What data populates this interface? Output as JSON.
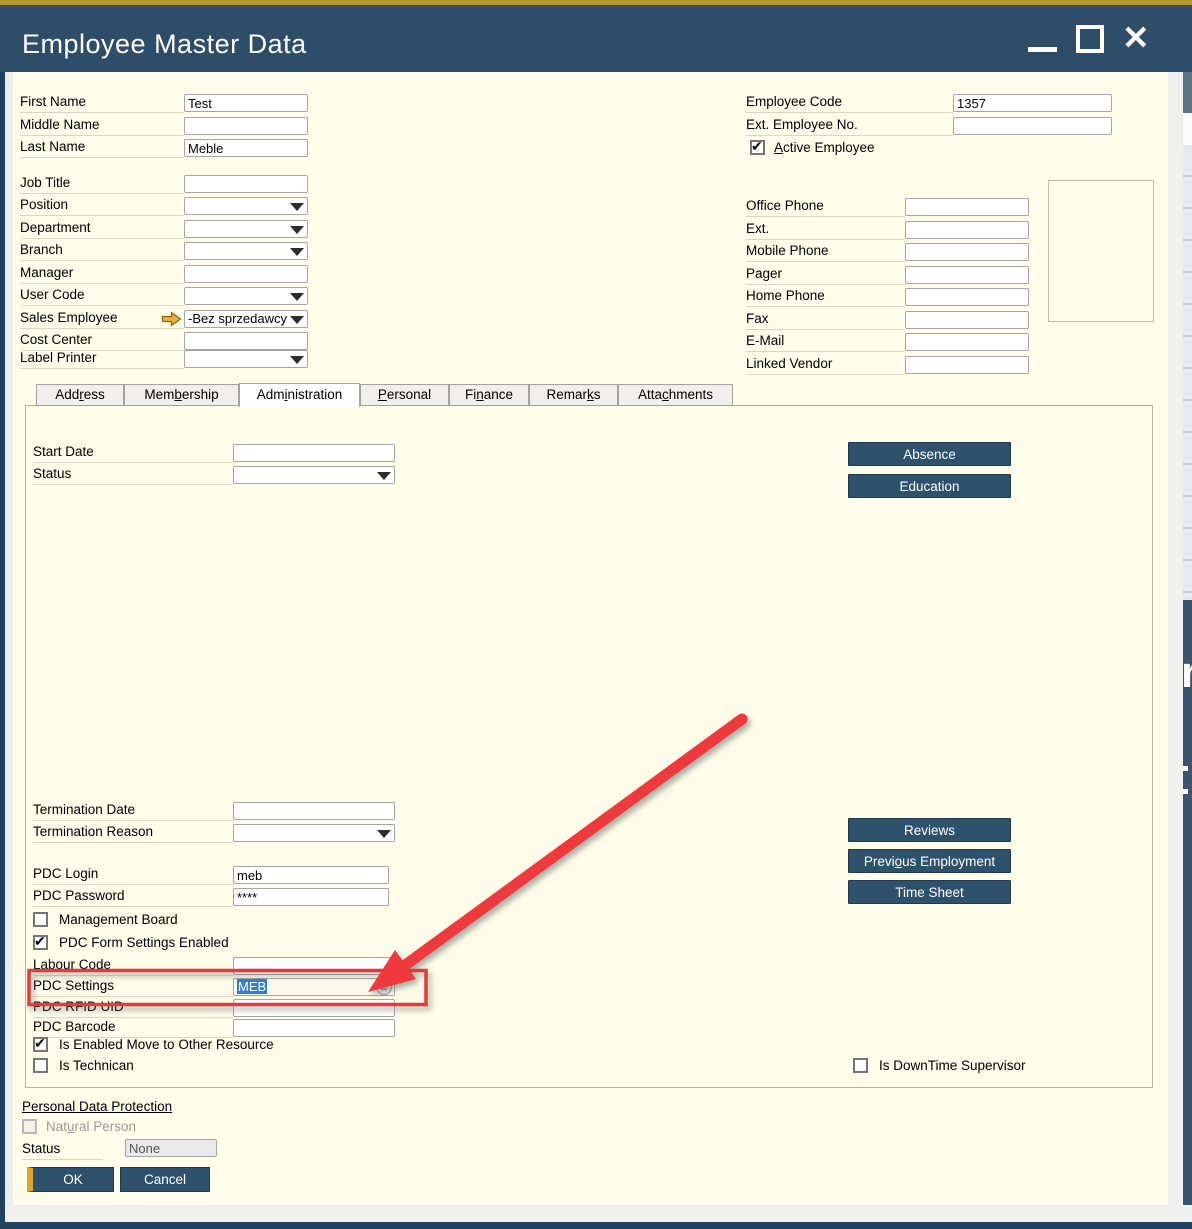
{
  "window": {
    "title": "Employee Master Data",
    "icons": {
      "close": "✕",
      "cfl": "≡"
    }
  },
  "general_left": {
    "rows": [
      {
        "label": "First Name",
        "value": "Test",
        "type": "text"
      },
      {
        "label": "Middle Name",
        "value": "",
        "type": "text"
      },
      {
        "label": "Last Name",
        "value": "Meble",
        "type": "text"
      },
      {
        "label": "Job Title",
        "value": "",
        "type": "text"
      },
      {
        "label": "Position",
        "value": "",
        "type": "combo"
      },
      {
        "label": "Department",
        "value": "",
        "type": "combo"
      },
      {
        "label": "Branch",
        "value": "",
        "type": "combo"
      },
      {
        "label": "Manager",
        "value": "",
        "type": "text"
      },
      {
        "label": "User Code",
        "value": "",
        "type": "combo"
      },
      {
        "label": "Sales Employee",
        "value": "-Bez sprzedawcy",
        "type": "combo",
        "link_arrow": true
      },
      {
        "label": "Cost Center",
        "value": "",
        "type": "text"
      },
      {
        "label": "Label Printer",
        "value": "",
        "type": "combo"
      }
    ]
  },
  "general_right": {
    "employee_code": {
      "label": "Employee Code",
      "value": "1357"
    },
    "ext_employee_no": {
      "label": "Ext. Employee No.",
      "value": ""
    },
    "active_employee": {
      "label": "Active Employee",
      "checked": true
    },
    "contact_rows": [
      {
        "label": "Office Phone",
        "value": ""
      },
      {
        "label": "Ext.",
        "value": ""
      },
      {
        "label": "Mobile Phone",
        "value": ""
      },
      {
        "label": "Pager",
        "value": ""
      },
      {
        "label": "Home Phone",
        "value": ""
      },
      {
        "label": "Fax",
        "value": ""
      },
      {
        "label": "E-Mail",
        "value": ""
      },
      {
        "label": "Linked Vendor",
        "value": ""
      }
    ]
  },
  "tabs": [
    {
      "label": "Address",
      "active": false
    },
    {
      "label": "Membership",
      "active": false
    },
    {
      "label": "Administration",
      "active": true
    },
    {
      "label": "Personal",
      "active": false
    },
    {
      "label": "Finance",
      "active": false
    },
    {
      "label": "Remarks",
      "active": false
    },
    {
      "label": "Attachments",
      "active": false
    }
  ],
  "admin": {
    "start_date": {
      "label": "Start Date",
      "value": ""
    },
    "status": {
      "label": "Status",
      "value": ""
    },
    "absence_btn": "Absence",
    "education_btn": "Education",
    "termination_date": {
      "label": "Termination Date",
      "value": ""
    },
    "termination_reason": {
      "label": "Termination Reason",
      "value": ""
    },
    "pdc_login": {
      "label": "PDC Login",
      "value": "meb"
    },
    "pdc_password": {
      "label": "PDC Password",
      "value": "****"
    },
    "management_board": {
      "label": "Management Board",
      "checked": false
    },
    "pdc_form_settings": {
      "label": "PDC Form Settings Enabled",
      "checked": true
    },
    "labour_code": {
      "label": "Labour Code",
      "value": ""
    },
    "pdc_settings": {
      "label": "PDC Settings",
      "value": "MEB",
      "selected": true
    },
    "pdc_rfid_uid": {
      "label": "PDC RFID UID",
      "value": ""
    },
    "pdc_barcode": {
      "label": "PDC Barcode",
      "value": ""
    },
    "move_to_other_resource": {
      "label": "Is Enabled Move to Other Resource",
      "checked": true
    },
    "is_technican": {
      "label": "Is Technican",
      "checked": false
    },
    "is_downtime_supervisor": {
      "label": "Is DownTime Supervisor",
      "checked": false
    },
    "reviews_btn": "Reviews",
    "previous_employment_btn": "Previous Employment",
    "time_sheet_btn": "Time Sheet"
  },
  "footer": {
    "personal_data_protection": "Personal Data Protection",
    "natural_person": {
      "label": "Natural Person",
      "checked": false,
      "disabled": true
    },
    "status": {
      "label": "Status",
      "value": "None"
    },
    "ok_btn": "OK",
    "cancel_btn": "Cancel"
  },
  "background_window": {
    "partial_glyph": "r"
  },
  "colors": {
    "title_bar": "#2e4d68",
    "gold": "#b3972f",
    "button_blue": "#2e516c",
    "annotation_red": "#e23b3b",
    "selection_blue": "#2f7fd3",
    "content_bg": "#fdfdea"
  }
}
